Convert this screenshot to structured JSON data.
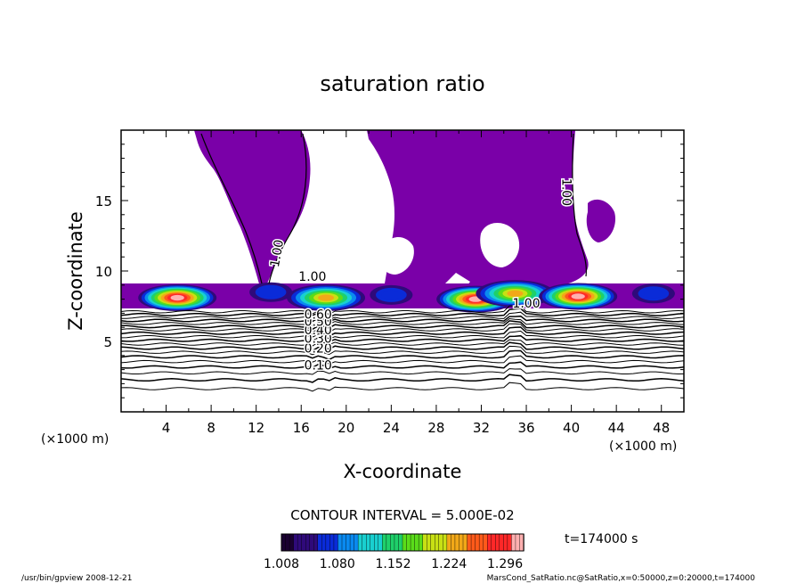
{
  "chart_data": {
    "type": "heatmap",
    "title": "saturation ratio",
    "xlabel": "X-coordinate",
    "ylabel": "Z-coordinate",
    "x_unit_label": "(×1000 m)",
    "y_unit_label": "(×1000 m)",
    "xlim": [
      0,
      50
    ],
    "ylim": [
      0,
      20
    ],
    "x_ticks": [
      "4",
      "8",
      "12",
      "16",
      "20",
      "24",
      "28",
      "32",
      "36",
      "40",
      "44",
      "48"
    ],
    "y_ticks": [
      "5",
      "10",
      "15"
    ],
    "contour_interval_text": "CONTOUR INTERVAL = 5.000E-02",
    "contour_labels": [
      {
        "text": "0.10",
        "x": 17.5,
        "z": 3.0
      },
      {
        "text": "0.20",
        "x": 17.5,
        "z": 4.2
      },
      {
        "text": "0.30",
        "x": 17.5,
        "z": 4.9
      },
      {
        "text": "0.40",
        "x": 17.5,
        "z": 5.5
      },
      {
        "text": "0.50",
        "x": 17.5,
        "z": 6.1
      },
      {
        "text": "0.60",
        "x": 17.5,
        "z": 6.6
      },
      {
        "text": "1.00",
        "x": 14.2,
        "z": 11.2
      },
      {
        "text": "1.00",
        "x": 17.0,
        "z": 9.3
      },
      {
        "text": "1.00",
        "x": 39.2,
        "z": 15.6
      },
      {
        "text": "1.00",
        "x": 36.0,
        "z": 7.4
      }
    ],
    "colorbar": {
      "tick_labels": [
        "1.008",
        "1.080",
        "1.152",
        "1.224",
        "1.296"
      ],
      "min": 1.008,
      "max": 1.32,
      "colors": [
        "#1a0030",
        "#2f0a7a",
        "#0a2bd8",
        "#0a8af0",
        "#19d0d0",
        "#1fd06a",
        "#5adc1a",
        "#c8e014",
        "#f2a818",
        "#ff5a1a",
        "#ff2828",
        "#ffb0b0"
      ]
    },
    "supersaturated_color": "#7a00a8",
    "time_label": "t=174000 s",
    "cloud_cells": [
      {
        "x": 5.0,
        "z": 8.1,
        "peak": 1.3
      },
      {
        "x": 13.3,
        "z": 8.5,
        "peak": 1.05
      },
      {
        "x": 18.2,
        "z": 8.1,
        "peak": 1.2
      },
      {
        "x": 24.0,
        "z": 8.3,
        "peak": 1.04
      },
      {
        "x": 31.5,
        "z": 8.0,
        "peak": 1.28
      },
      {
        "x": 35.0,
        "z": 8.4,
        "peak": 1.22
      },
      {
        "x": 40.6,
        "z": 8.2,
        "peak": 1.3
      },
      {
        "x": 47.3,
        "z": 8.4,
        "peak": 1.05
      }
    ]
  },
  "footer": {
    "program": "/usr/bin/gpview   2008-12-21",
    "source": "MarsCond_SatRatio.nc@SatRatio,x=0:50000,z=0:20000,t=174000"
  }
}
